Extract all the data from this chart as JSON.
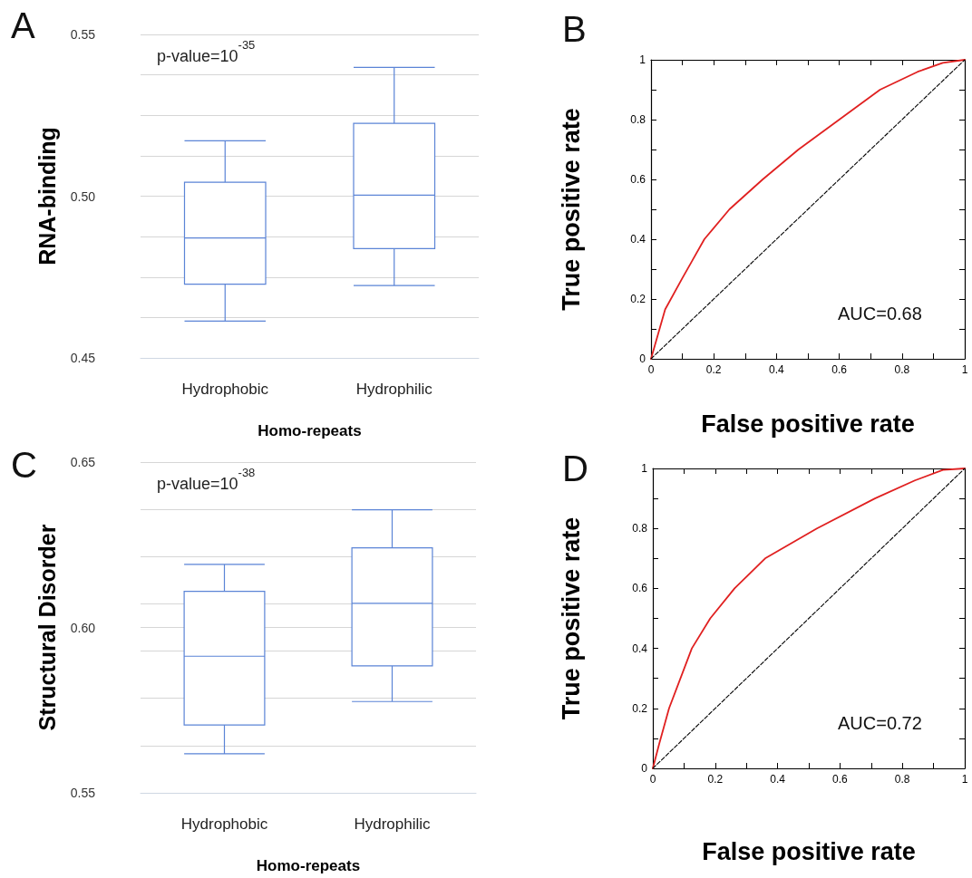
{
  "chart_data": [
    {
      "type": "box",
      "title": "A",
      "ylabel": "RNA-binding",
      "xlabel": "Homo-repeats",
      "categories": [
        "Hydrophobic",
        "Hydrophilic"
      ],
      "color": "#5b84d6",
      "boxes": [
        {
          "low": 0.4614,
          "q1": 0.4728,
          "median": 0.4871,
          "q3": 0.5043,
          "high": 0.5171
        },
        {
          "low": 0.4724,
          "q1": 0.4838,
          "median": 0.5003,
          "q3": 0.5225,
          "high": 0.5398
        }
      ],
      "ylim": [
        0.45,
        0.55
      ],
      "yticks": [
        {
          "value": 0.45,
          "label": "0.45"
        },
        {
          "value": 0.4625,
          "label": null
        },
        {
          "value": 0.475,
          "label": null
        },
        {
          "value": 0.4875,
          "label": null
        },
        {
          "value": 0.5,
          "label": "0.50"
        },
        {
          "value": 0.5125,
          "label": null
        },
        {
          "value": 0.525,
          "label": null
        },
        {
          "value": 0.5375,
          "label": null
        },
        {
          "value": 0.55,
          "label": "0.55"
        }
      ],
      "grid": "y",
      "annotations": [
        "p-value=10$^{-35}$"
      ]
    },
    {
      "type": "line",
      "title": "B",
      "xlabel": "False positive rate",
      "ylabel": "True positive rate",
      "marker": "none",
      "grid": false,
      "series": [
        {
          "color": "#e02020",
          "x": [
            0,
            0.045,
            0.1,
            0.17,
            0.25,
            0.356,
            0.47,
            0.6,
            0.73,
            0.85,
            0.93,
            1
          ],
          "values": [
            0,
            0.165,
            0.27,
            0.4,
            0.5,
            0.6,
            0.7,
            0.8,
            0.9,
            0.96,
            0.99,
            1
          ]
        },
        {
          "color": "#000000",
          "line_style": "dashed",
          "x": [
            0,
            1
          ],
          "values": [
            0,
            1
          ]
        }
      ],
      "xlim": [
        0,
        1
      ],
      "ylim": [
        0,
        1
      ],
      "xticks": [
        0,
        {
          "value": 0.1,
          "label": null
        },
        0.2,
        {
          "value": 0.3,
          "label": null
        },
        0.4,
        {
          "value": 0.5,
          "label": null
        },
        0.6,
        {
          "value": 0.7,
          "label": null
        },
        0.8,
        {
          "value": 0.9,
          "label": null
        },
        1
      ],
      "yticks": [
        0,
        {
          "value": 0.1,
          "label": null
        },
        0.2,
        {
          "value": 0.3,
          "label": null
        },
        0.4,
        {
          "value": 0.5,
          "label": null
        },
        0.6,
        {
          "value": 0.7,
          "label": null
        },
        0.8,
        {
          "value": 0.9,
          "label": null
        },
        1
      ],
      "annotations": [
        "AUC=0.68"
      ]
    },
    {
      "type": "box",
      "title": "C",
      "ylabel": "Structural Disorder",
      "xlabel": "Homo-repeats",
      "categories": [
        "Hydrophobic",
        "Hydrophilic"
      ],
      "color": "#5b84d6",
      "boxes": [
        {
          "low": 0.5618,
          "q1": 0.5705,
          "median": 0.5913,
          "q3": 0.6109,
          "high": 0.6191
        },
        {
          "low": 0.5776,
          "q1": 0.5884,
          "median": 0.6073,
          "q3": 0.6241,
          "high": 0.6356
        }
      ],
      "ylim": [
        0.55,
        0.65
      ],
      "yticks": [
        {
          "value": 0.55,
          "label": "0.55"
        },
        {
          "value": 0.5643,
          "label": null
        },
        {
          "value": 0.5786,
          "label": null
        },
        {
          "value": 0.5929,
          "label": null
        },
        {
          "value": 0.6,
          "label": "0.60"
        },
        {
          "value": 0.6071,
          "label": null
        },
        {
          "value": 0.6214,
          "label": null
        },
        {
          "value": 0.6357,
          "label": null
        },
        {
          "value": 0.65,
          "label": "0.65"
        }
      ],
      "grid": "y",
      "annotations": [
        "p-value=10$^{-38}$"
      ]
    },
    {
      "type": "line",
      "title": "D",
      "xlabel": "False positive rate",
      "ylabel": "True positive rate",
      "marker": "none",
      "grid": false,
      "series": [
        {
          "color": "#e02020",
          "x": [
            0,
            0.02,
            0.052,
            0.125,
            0.184,
            0.262,
            0.36,
            0.526,
            0.712,
            0.84,
            0.93,
            1
          ],
          "values": [
            0,
            0.08,
            0.2,
            0.4,
            0.5,
            0.6,
            0.7,
            0.8,
            0.9,
            0.96,
            0.995,
            1
          ]
        },
        {
          "color": "#000000",
          "line_style": "dashed",
          "x": [
            0,
            1
          ],
          "values": [
            0,
            1
          ]
        }
      ],
      "xlim": [
        0,
        1
      ],
      "ylim": [
        0,
        1
      ],
      "xticks": [
        0,
        {
          "value": 0.1,
          "label": null
        },
        0.2,
        {
          "value": 0.3,
          "label": null
        },
        0.4,
        {
          "value": 0.5,
          "label": null
        },
        0.6,
        {
          "value": 0.7,
          "label": null
        },
        0.8,
        {
          "value": 0.9,
          "label": null
        },
        1
      ],
      "yticks": [
        0,
        {
          "value": 0.1,
          "label": null
        },
        0.2,
        {
          "value": 0.3,
          "label": null
        },
        0.4,
        {
          "value": 0.5,
          "label": null
        },
        0.6,
        {
          "value": 0.7,
          "label": null
        },
        0.8,
        {
          "value": 0.9,
          "label": null
        },
        1
      ],
      "annotations": [
        "AUC=0.72"
      ]
    }
  ]
}
